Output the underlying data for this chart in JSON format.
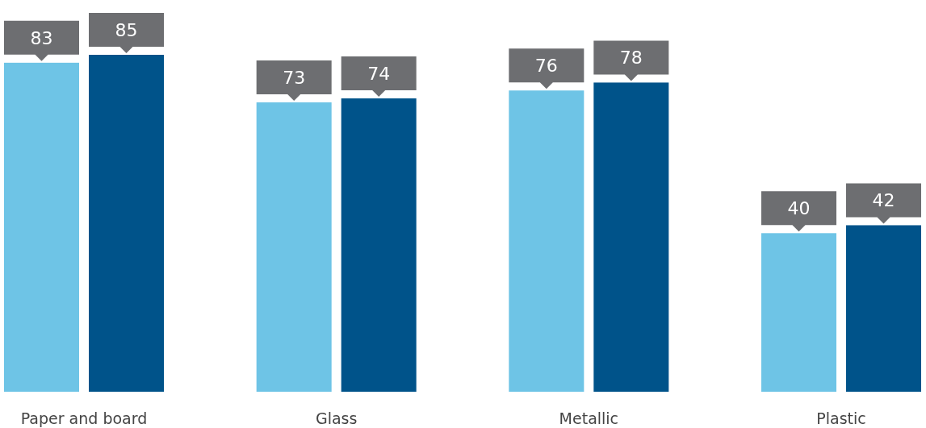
{
  "chart_data": {
    "type": "bar",
    "categories": [
      "Paper and board",
      "Glass",
      "Metallic",
      "Plastic"
    ],
    "series": [
      {
        "color": "#6ec4e6",
        "values": [
          83,
          73,
          76,
          40
        ]
      },
      {
        "color": "#00538a",
        "values": [
          85,
          74,
          78,
          42
        ]
      }
    ],
    "data_labels": true
  }
}
